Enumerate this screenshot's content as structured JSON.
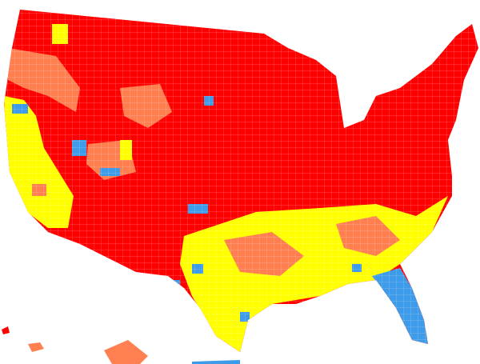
{
  "map": {
    "fill_colors": [
      "#ff0000",
      "#ff7f50",
      "#ffff00",
      "#3d9be9"
    ]
  }
}
